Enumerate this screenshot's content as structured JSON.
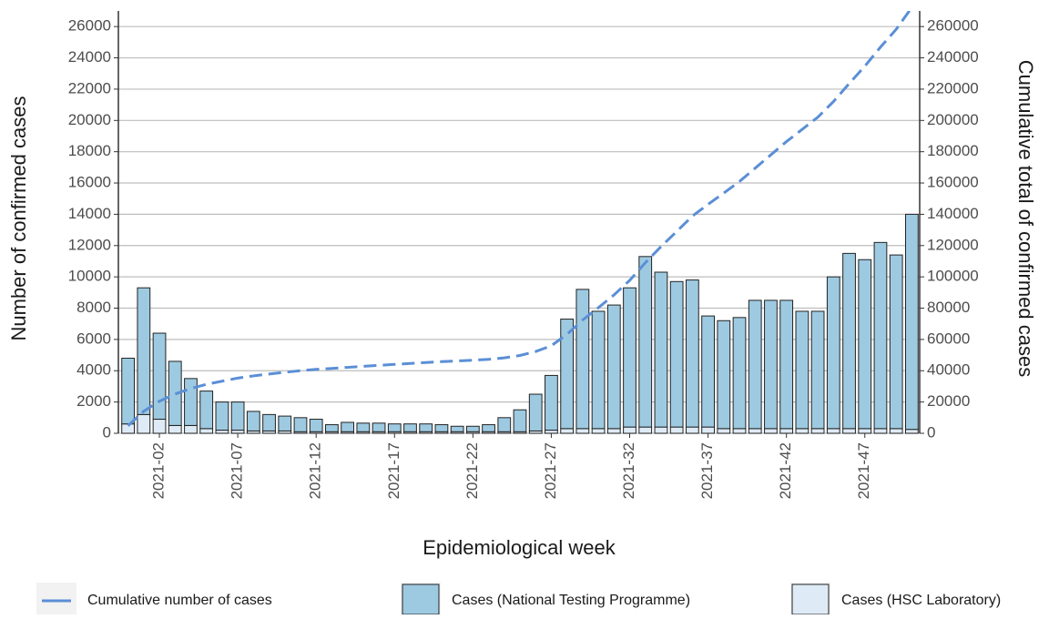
{
  "chart_data": {
    "type": "bar",
    "x_label": "Epidemiological week",
    "y_label": "Number of confirmed cases",
    "y2_label": "Cumulative total of confirmed cases",
    "categories": [
      null,
      null,
      "2021-02",
      null,
      null,
      null,
      null,
      "2021-07",
      null,
      null,
      null,
      null,
      "2021-12",
      null,
      null,
      null,
      null,
      "2021-17",
      null,
      null,
      null,
      null,
      "2021-22",
      null,
      null,
      null,
      null,
      "2021-27",
      null,
      null,
      null,
      null,
      "2021-32",
      null,
      null,
      null,
      null,
      "2021-37",
      null,
      null,
      null,
      null,
      "2021-42",
      null,
      null,
      null,
      null,
      "2021-47",
      null,
      null,
      null
    ],
    "series": [
      {
        "name": "Cumulative number of cases",
        "type": "line",
        "axis": "y2",
        "color": "#5b8fd6",
        "values": [
          4800,
          14100,
          20500,
          25100,
          28600,
          31300,
          33300,
          35300,
          36700,
          37900,
          39000,
          40000,
          40900,
          41450,
          42150,
          42800,
          43450,
          44050,
          44650,
          45250,
          45800,
          46250,
          46700,
          47250,
          48250,
          49750,
          52250,
          55950,
          63250,
          72450,
          80250,
          88450,
          97750,
          109050,
          119350,
          129050,
          138850,
          146350,
          153550,
          160950,
          169450,
          177950,
          186450,
          194250,
          202050,
          212050,
          223550,
          234650,
          246850,
          258250,
          272250
        ]
      },
      {
        "name": "Cases (National Testing Programme)",
        "type": "bar",
        "color": "#9ecae1",
        "values": [
          4200,
          8100,
          5500,
          4100,
          3000,
          2400,
          1800,
          1800,
          1250,
          1050,
          950,
          900,
          800,
          450,
          600,
          550,
          550,
          500,
          500,
          500,
          450,
          350,
          350,
          450,
          900,
          1400,
          2350,
          3500,
          7000,
          8900,
          7500,
          7900,
          8900,
          10900,
          9900,
          9300,
          9400,
          7100,
          6900,
          7100,
          8200,
          8200,
          8200,
          7500,
          7500,
          9700,
          11200,
          10800,
          11900,
          11100,
          13750
        ]
      },
      {
        "name": "Cases (HSC Laboratory)",
        "type": "bar",
        "color": "#deebf7",
        "values": [
          600,
          1200,
          900,
          500,
          500,
          300,
          200,
          200,
          150,
          150,
          150,
          100,
          100,
          100,
          100,
          100,
          100,
          100,
          100,
          100,
          100,
          100,
          100,
          100,
          100,
          100,
          150,
          200,
          300,
          300,
          300,
          300,
          400,
          400,
          400,
          400,
          400,
          400,
          300,
          300,
          300,
          300,
          300,
          300,
          300,
          300,
          300,
          300,
          300,
          300,
          250
        ]
      }
    ],
    "stacked": true,
    "ylim": [
      0,
      27000
    ],
    "yticks": [
      0,
      2000,
      4000,
      6000,
      8000,
      10000,
      12000,
      14000,
      16000,
      18000,
      20000,
      22000,
      24000,
      26000
    ],
    "y2lim": [
      0,
      270000
    ],
    "y2ticks": [
      0,
      20000,
      40000,
      60000,
      80000,
      100000,
      120000,
      140000,
      160000,
      180000,
      200000,
      220000,
      240000,
      260000
    ],
    "grid": true
  }
}
